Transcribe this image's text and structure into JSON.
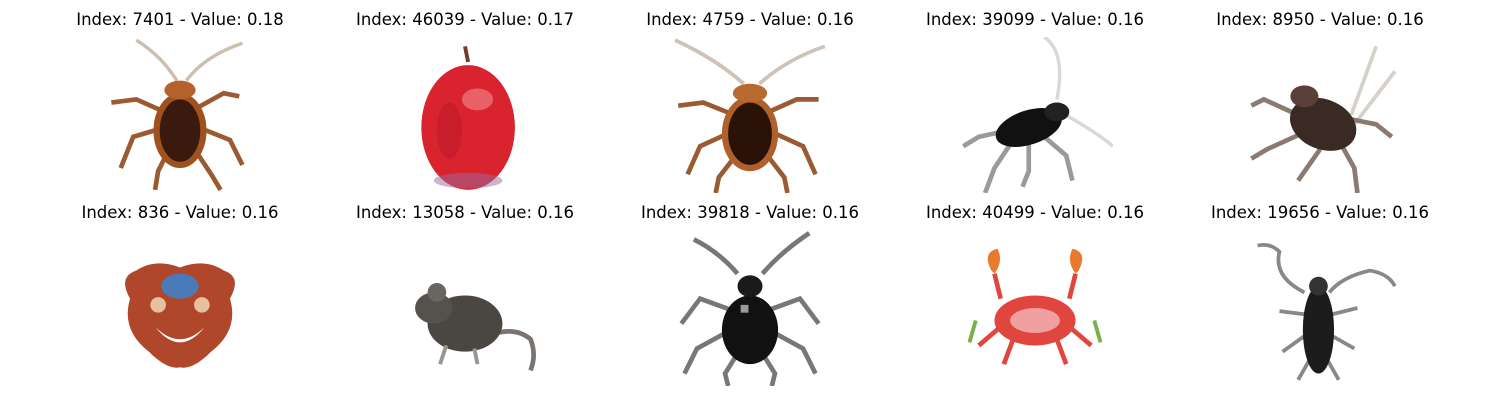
{
  "figure": {
    "items": [
      {
        "title": "Index: 7401 - Value: 0.18",
        "icon": "cockroach-icon"
      },
      {
        "title": "Index: 46039 - Value: 0.17",
        "icon": "apple-icon"
      },
      {
        "title": "Index: 4759 - Value: 0.16",
        "icon": "cockroach-icon"
      },
      {
        "title": "Index: 39099 - Value: 0.16",
        "icon": "cricket-icon"
      },
      {
        "title": "Index: 8950 - Value: 0.16",
        "icon": "cockroach-icon"
      },
      {
        "title": "Index: 836 - Value: 0.16",
        "icon": "mask-icon"
      },
      {
        "title": "Index: 13058 - Value: 0.16",
        "icon": "mouse-icon"
      },
      {
        "title": "Index: 39818 - Value: 0.16",
        "icon": "beetle-icon"
      },
      {
        "title": "Index: 40499 - Value: 0.16",
        "icon": "crab-icon"
      },
      {
        "title": "Index: 19656 - Value: 0.16",
        "icon": "longhorn-beetle-icon"
      }
    ],
    "colors": {
      "roach_body": "#3a1a0e",
      "roach_rim": "#a0521e",
      "apple": "#d9232e",
      "black_bug": "#111111",
      "mask": "#b0462a",
      "mouse": "#4a4743",
      "crab": "#e0463e"
    }
  }
}
